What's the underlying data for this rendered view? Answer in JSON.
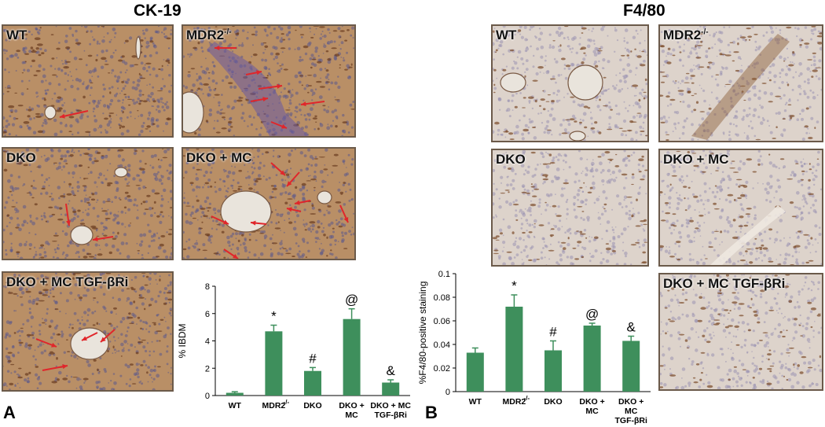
{
  "section_titles": {
    "left": "CK-19",
    "right": "F4/80"
  },
  "panel_letters": {
    "a": "A",
    "b": "B"
  },
  "ck19_panels": [
    "WT",
    "MDR2",
    "DKO",
    "DKO + MC",
    "DKO + MC TGF-βRi"
  ],
  "f480_panels": [
    "WT",
    "MDR2",
    "DKO",
    "DKO + MC",
    "DKO + MC TGF-βRi"
  ],
  "sup_ko": "-/-",
  "colors": {
    "bar": "#3e8f5c",
    "ck19_tissue": "#b98f66",
    "f480_tissue": "#ddd3cb",
    "arrow": "#e0262b"
  },
  "chart_data": [
    {
      "type": "bar",
      "title": "",
      "xlabel": "",
      "ylabel": "% IBDM",
      "ylim": [
        0,
        8
      ],
      "yticks": [
        "0",
        "2",
        "4",
        "6",
        "8"
      ],
      "categories": [
        "WT",
        "MDR2-/-",
        "DKO",
        "DKO + MC",
        "DKO + MC TGF-βRi"
      ],
      "category_lines": [
        [
          "WT"
        ],
        [
          "MDR2",
          "-/-"
        ],
        [
          "DKO"
        ],
        [
          "DKO +",
          "MC"
        ],
        [
          "DKO + MC",
          "TGF-βRi"
        ]
      ],
      "values": [
        0.2,
        4.7,
        1.8,
        5.6,
        0.95
      ],
      "errors": [
        0.08,
        0.45,
        0.25,
        0.75,
        0.2
      ],
      "annotations": [
        "",
        "*",
        "#",
        "@",
        "&"
      ]
    },
    {
      "type": "bar",
      "title": "",
      "xlabel": "",
      "ylabel": "%F4/80-positive staining",
      "ylim": [
        0,
        0.1
      ],
      "yticks": [
        "0",
        "0.02",
        "0.04",
        "0.06",
        "0.08",
        "0.1"
      ],
      "categories": [
        "WT",
        "MDR2-/-",
        "DKO",
        "DKO + MC",
        "DKO + MC TGF-βRi"
      ],
      "category_lines": [
        [
          "WT"
        ],
        [
          "MDR2",
          "-/-"
        ],
        [
          "DKO"
        ],
        [
          "DKO +",
          "MC"
        ],
        [
          "DKO +",
          "MC",
          "TGF-βRi"
        ]
      ],
      "values": [
        0.033,
        0.072,
        0.035,
        0.056,
        0.043
      ],
      "errors": [
        0.004,
        0.01,
        0.008,
        0.002,
        0.004
      ],
      "annotations": [
        "",
        "*",
        "#",
        "@",
        "&"
      ]
    }
  ]
}
